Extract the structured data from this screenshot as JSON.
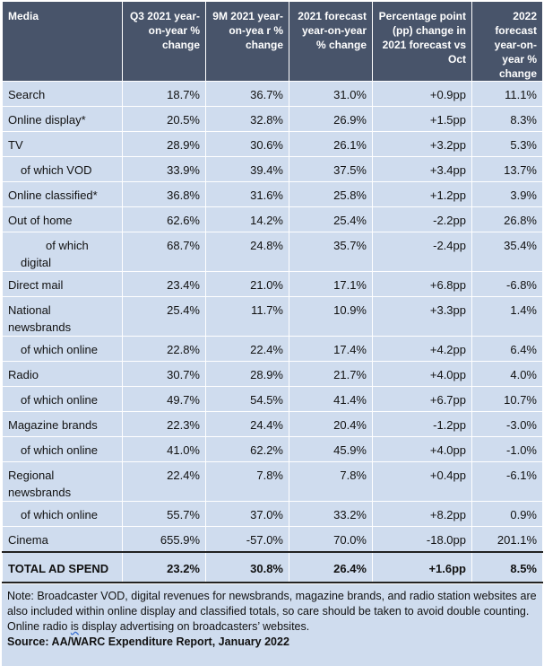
{
  "headers": [
    "Media",
    "Q3 2021 year-on-year % change",
    "9M 2021 year-on-yea r % change",
    "2021 forecast year-on-year % change",
    "Percentage point (pp) change in 2021 forecast vs Oct",
    "2022 forecast year-on-year % change"
  ],
  "rows": [
    {
      "media": "Search",
      "q3": "18.7%",
      "m9": "36.7%",
      "f21": "31.0%",
      "pp": "+0.9pp",
      "f22": "11.1%"
    },
    {
      "media": "Online display*",
      "q3": "20.5%",
      "m9": "32.8%",
      "f21": "26.9%",
      "pp": "+1.5pp",
      "f22": "8.3%"
    },
    {
      "media": "TV",
      "q3": "28.9%",
      "m9": "30.6%",
      "f21": "26.1%",
      "pp": "+3.2pp",
      "f22": "5.3%"
    },
    {
      "media": "of which VOD",
      "q3": "33.9%",
      "m9": "39.4%",
      "f21": "37.5%",
      "pp": "+3.4pp",
      "f22": "13.7%"
    },
    {
      "media": "Online classified*",
      "q3": "36.8%",
      "m9": "31.6%",
      "f21": "25.8%",
      "pp": "+1.2pp",
      "f22": "3.9%"
    },
    {
      "media": "Out of home",
      "q3": "62.6%",
      "m9": "14.2%",
      "f21": "25.4%",
      "pp": "-2.2pp",
      "f22": "26.8%"
    },
    {
      "media_a": "of which",
      "media_b": "digital",
      "q3": "68.7%",
      "m9": "24.8%",
      "f21": "35.7%",
      "pp": "-2.4pp",
      "f22": "35.4%"
    },
    {
      "media": "Direct mail",
      "q3": "23.4%",
      "m9": "21.0%",
      "f21": "17.1%",
      "pp": "+6.8pp",
      "f22": "-6.8%"
    },
    {
      "media": "National newsbrands",
      "q3": "25.4%",
      "m9": "11.7%",
      "f21": "10.9%",
      "pp": "+3.3pp",
      "f22": "1.4%"
    },
    {
      "media": "of which online",
      "q3": "22.8%",
      "m9": "22.4%",
      "f21": "17.4%",
      "pp": "+4.2pp",
      "f22": "6.4%"
    },
    {
      "media": "Radio",
      "q3": "30.7%",
      "m9": "28.9%",
      "f21": "21.7%",
      "pp": "+4.0pp",
      "f22": "4.0%"
    },
    {
      "media": "of which online",
      "q3": "49.7%",
      "m9": "54.5%",
      "f21": "41.4%",
      "pp": "+6.7pp",
      "f22": "10.7%"
    },
    {
      "media": "Magazine brands",
      "q3": "22.3%",
      "m9": "24.4%",
      "f21": "20.4%",
      "pp": "-1.2pp",
      "f22": "-3.0%"
    },
    {
      "media": "of which online",
      "q3": "41.0%",
      "m9": "62.2%",
      "f21": "45.9%",
      "pp": "+4.0pp",
      "f22": "-1.0%"
    },
    {
      "media": "Regional newsbrands",
      "q3": "22.4%",
      "m9": "7.8%",
      "f21": "7.8%",
      "pp": "+0.4pp",
      "f22": "-6.1%"
    },
    {
      "media": "of which online",
      "q3": "55.7%",
      "m9": "37.0%",
      "f21": "33.2%",
      "pp": "+8.2pp",
      "f22": "0.9%"
    },
    {
      "media": "Cinema",
      "q3": "655.9%",
      "m9": "-57.0%",
      "f21": "70.0%",
      "pp": "-18.0pp",
      "f22": "201.1%"
    }
  ],
  "total": {
    "media": "TOTAL AD SPEND",
    "q3": "23.2%",
    "m9": "30.8%",
    "f21": "26.4%",
    "pp": "+1.6pp",
    "f22": "8.5%"
  },
  "note": {
    "text_before": "Note: Broadcaster VOD, digital revenues for newsbrands, magazine brands, and radio station websites are also included within online display and classified totals, so care should be taken to avoid double counting. Online radio ",
    "text_squig": "is",
    "text_after": " display advertising on broadcasters’ websites.",
    "source": "Source: AA/WARC Expenditure Report, January 2022"
  },
  "colors": {
    "header_bg": "#48546a",
    "cell_bg": "#cfdcee"
  }
}
